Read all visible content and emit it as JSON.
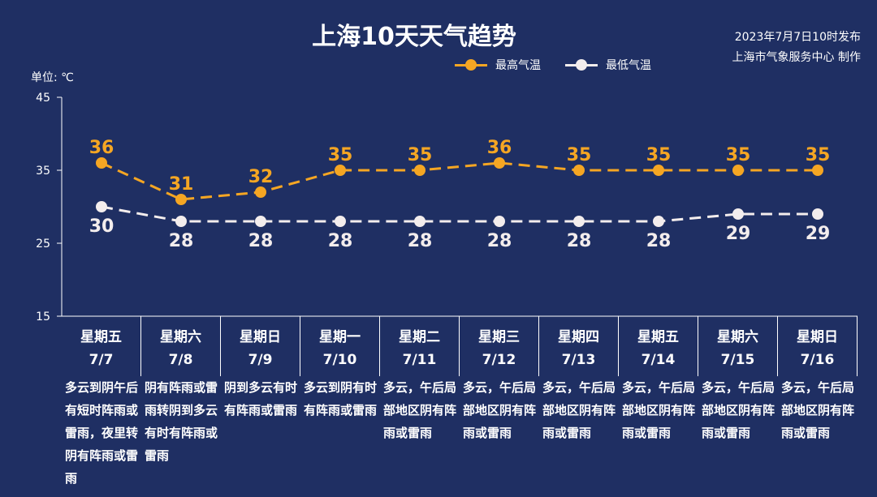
{
  "title": "上海10天天气趋势",
  "publish": {
    "line1": "2023年7月7日10时发布",
    "line2": "上海市气象服务中心 制作"
  },
  "legend": {
    "high": "最高气温",
    "low": "最低气温"
  },
  "unit_label": "单位: ℃",
  "colors": {
    "background": "#1f2f63",
    "high": "#f5a623",
    "low": "#f3eded",
    "text": "#ffffff"
  },
  "chart_data": {
    "type": "line",
    "title": "上海10天天气趋势",
    "ylabel": "单位: ℃",
    "ylim": [
      15,
      45
    ],
    "yticks": [
      15,
      25,
      35,
      45
    ],
    "categories": [
      "7/7",
      "7/8",
      "7/9",
      "7/10",
      "7/11",
      "7/12",
      "7/13",
      "7/14",
      "7/15",
      "7/16"
    ],
    "series": [
      {
        "name": "最高气温",
        "values": [
          36,
          31,
          32,
          35,
          35,
          36,
          35,
          35,
          35,
          35
        ],
        "style": "dashed",
        "color": "#f5a623"
      },
      {
        "name": "最低气温",
        "values": [
          30,
          28,
          28,
          28,
          28,
          28,
          28,
          28,
          29,
          29
        ],
        "style": "dashed",
        "color": "#f3eded"
      }
    ],
    "grid": false,
    "legend_position": "top-right"
  },
  "days": [
    {
      "weekday": "星期五",
      "date": "7/7",
      "desc": "多云到阴午后有短时阵雨或雷雨，夜里转阴有阵雨或雷雨"
    },
    {
      "weekday": "星期六",
      "date": "7/8",
      "desc": "阴有阵雨或雷雨转阴到多云有时有阵雨或雷雨"
    },
    {
      "weekday": "星期日",
      "date": "7/9",
      "desc": "阴到多云有时有阵雨或雷雨"
    },
    {
      "weekday": "星期一",
      "date": "7/10",
      "desc": "多云到阴有时有阵雨或雷雨"
    },
    {
      "weekday": "星期二",
      "date": "7/11",
      "desc": "多云，午后局部地区阴有阵雨或雷雨"
    },
    {
      "weekday": "星期三",
      "date": "7/12",
      "desc": "多云，午后局部地区阴有阵雨或雷雨"
    },
    {
      "weekday": "星期四",
      "date": "7/13",
      "desc": "多云，午后局部地区阴有阵雨或雷雨"
    },
    {
      "weekday": "星期五",
      "date": "7/14",
      "desc": "多云，午后局部地区阴有阵雨或雷雨"
    },
    {
      "weekday": "星期六",
      "date": "7/15",
      "desc": "多云，午后局部地区阴有阵雨或雷雨"
    },
    {
      "weekday": "星期日",
      "date": "7/16",
      "desc": "多云，午后局部地区阴有阵雨或雷雨"
    }
  ]
}
